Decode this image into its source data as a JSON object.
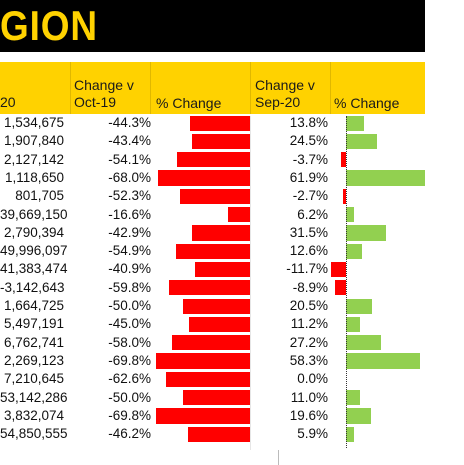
{
  "title": "GION",
  "headers": {
    "col1": "20",
    "col2_line1": "Change v",
    "col2_line2": "Oct-19",
    "col3": "% Change",
    "col4_line1": "Change v",
    "col4_line2": "Sep-20",
    "col5": "% Change"
  },
  "colors": {
    "title_bg": "#000000",
    "title_text": "#ffd200",
    "header_bg": "#ffd200",
    "negative_bar": "#ff0000",
    "positive_bar": "#92d050"
  },
  "chart_data": {
    "type": "bar",
    "title": "",
    "xlabel": "",
    "ylabel": "",
    "rows": [
      {
        "value": "1,534,675",
        "change_oct19": "-44.3%",
        "change_sep20": "13.8%"
      },
      {
        "value": "1,907,840",
        "change_oct19": "-43.4%",
        "change_sep20": "24.5%"
      },
      {
        "value": "2,127,142",
        "change_oct19": "-54.1%",
        "change_sep20": "-3.7%"
      },
      {
        "value": "1,118,650",
        "change_oct19": "-68.0%",
        "change_sep20": "61.9%"
      },
      {
        "value": "801,705",
        "change_oct19": "-52.3%",
        "change_sep20": "-2.7%"
      },
      {
        "value": "39,669,150",
        "change_oct19": "-16.6%",
        "change_sep20": "6.2%"
      },
      {
        "value": "2,790,394",
        "change_oct19": "-42.9%",
        "change_sep20": "31.5%"
      },
      {
        "value": "49,996,097",
        "change_oct19": "-54.9%",
        "change_sep20": "12.6%"
      },
      {
        "value": "41,383,474",
        "change_oct19": "-40.9%",
        "change_sep20": "-11.7%"
      },
      {
        "value": "-3,142,643",
        "change_oct19": "-59.8%",
        "change_sep20": "-8.9%"
      },
      {
        "value": "1,664,725",
        "change_oct19": "-50.0%",
        "change_sep20": "20.5%"
      },
      {
        "value": "5,497,191",
        "change_oct19": "-45.0%",
        "change_sep20": "11.2%"
      },
      {
        "value": "6,762,741",
        "change_oct19": "-58.0%",
        "change_sep20": "27.2%"
      },
      {
        "value": "2,269,123",
        "change_oct19": "-69.8%",
        "change_sep20": "58.3%"
      },
      {
        "value": "7,210,645",
        "change_oct19": "-62.6%",
        "change_sep20": "0.0%"
      },
      {
        "value": "53,142,286",
        "change_oct19": "-50.0%",
        "change_sep20": "11.0%"
      },
      {
        "value": "3,832,074",
        "change_oct19": "-69.8%",
        "change_sep20": "19.6%"
      },
      {
        "value": "54,850,555",
        "change_oct19": "-46.2%",
        "change_sep20": "5.9%"
      }
    ],
    "oct19_pct": [
      -44.3,
      -43.4,
      -54.1,
      -68.0,
      -52.3,
      -16.6,
      -42.9,
      -54.9,
      -40.9,
      -59.8,
      -50.0,
      -45.0,
      -58.0,
      -69.8,
      -62.6,
      -50.0,
      -69.8,
      -46.2
    ],
    "sep20_pct": [
      13.8,
      24.5,
      -3.7,
      61.9,
      -2.7,
      6.2,
      31.5,
      12.6,
      -11.7,
      -8.9,
      20.5,
      11.2,
      27.2,
      58.3,
      0.0,
      11.0,
      19.6,
      5.9
    ]
  }
}
